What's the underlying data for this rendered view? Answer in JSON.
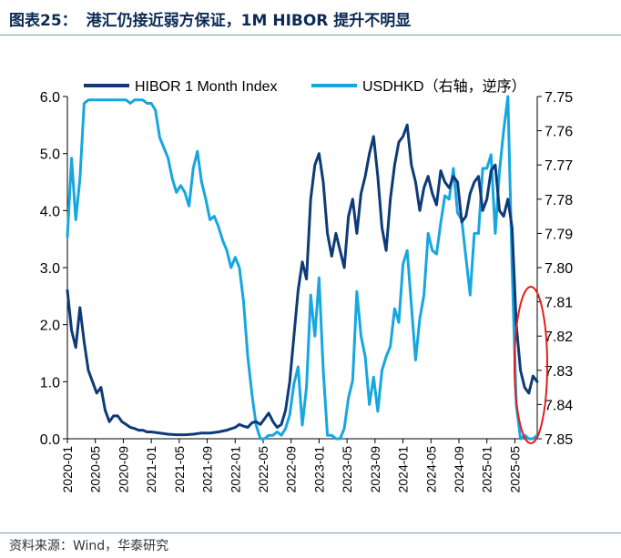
{
  "header": {
    "label": "图表25：",
    "title": "港汇仍接近弱方保证，1M HIBOR 提升不明显"
  },
  "footer": {
    "source": "资料来源：Wind，华泰研究"
  },
  "colors": {
    "hibor": "#0e3a78",
    "usdhkd": "#16a6e0",
    "axis": "#000000",
    "highlight": "#e0201b",
    "rule": "#7f98b5"
  },
  "chart_data": {
    "type": "line",
    "title": "",
    "xlabel": "",
    "ylabel_left": "",
    "ylabel_right": "",
    "left_axis": {
      "ylim": [
        0.0,
        6.0
      ],
      "ticks": [
        "0.0",
        "1.0",
        "2.0",
        "3.0",
        "4.0",
        "5.0",
        "6.0"
      ]
    },
    "right_axis": {
      "ylim": [
        7.75,
        7.85
      ],
      "inverted": true,
      "ticks": [
        "7.75",
        "7.76",
        "7.77",
        "7.78",
        "7.79",
        "7.80",
        "7.81",
        "7.82",
        "7.83",
        "7.84",
        "7.85"
      ]
    },
    "x_ticks": [
      "2020-01",
      "2020-05",
      "2020-09",
      "2021-01",
      "2021-05",
      "2021-09",
      "2022-01",
      "2022-05",
      "2022-09",
      "2023-01",
      "2023-05",
      "2023-09",
      "2024-01",
      "2024-05",
      "2024-09",
      "2025-01",
      "2025-05"
    ],
    "legend": [
      "HIBOR 1 Month Index",
      "USDHKD（右轴，逆序）"
    ],
    "legend_position": "top",
    "annotations": [
      "red ellipse highlighting 2025-05 onward"
    ],
    "series": [
      {
        "name": "HIBOR 1 Month Index",
        "axis": "left",
        "x": [
          2020.0,
          2020.05,
          2020.1,
          2020.15,
          2020.2,
          2020.25,
          2020.3,
          2020.35,
          2020.4,
          2020.45,
          2020.5,
          2020.55,
          2020.6,
          2020.65,
          2020.7,
          2020.75,
          2020.8,
          2020.85,
          2020.9,
          2020.95,
          2021.0,
          2021.1,
          2021.2,
          2021.3,
          2021.4,
          2021.5,
          2021.6,
          2021.7,
          2021.8,
          2021.9,
          2022.0,
          2022.05,
          2022.1,
          2022.15,
          2022.2,
          2022.25,
          2022.3,
          2022.35,
          2022.4,
          2022.45,
          2022.5,
          2022.55,
          2022.6,
          2022.65,
          2022.7,
          2022.75,
          2022.8,
          2022.85,
          2022.9,
          2022.95,
          2023.0,
          2023.05,
          2023.1,
          2023.15,
          2023.2,
          2023.25,
          2023.3,
          2023.35,
          2023.4,
          2023.45,
          2023.5,
          2023.55,
          2023.6,
          2023.65,
          2023.7,
          2023.75,
          2023.8,
          2023.85,
          2023.9,
          2023.95,
          2024.0,
          2024.05,
          2024.1,
          2024.15,
          2024.2,
          2024.25,
          2024.3,
          2024.35,
          2024.4,
          2024.45,
          2024.5,
          2024.55,
          2024.6,
          2024.65,
          2024.7,
          2024.75,
          2024.8,
          2024.85,
          2024.9,
          2024.95,
          2025.0,
          2025.05,
          2025.1,
          2025.15,
          2025.2,
          2025.25,
          2025.3,
          2025.35,
          2025.4,
          2025.45,
          2025.5,
          2025.55,
          2025.6
        ],
        "values": [
          2.6,
          1.9,
          1.6,
          2.3,
          1.7,
          1.2,
          1.0,
          0.8,
          0.9,
          0.5,
          0.3,
          0.4,
          0.4,
          0.3,
          0.25,
          0.2,
          0.18,
          0.15,
          0.15,
          0.12,
          0.12,
          0.1,
          0.08,
          0.07,
          0.07,
          0.08,
          0.1,
          0.1,
          0.12,
          0.15,
          0.2,
          0.25,
          0.22,
          0.2,
          0.28,
          0.3,
          0.25,
          0.35,
          0.45,
          0.3,
          0.2,
          0.25,
          0.5,
          1.0,
          1.8,
          2.6,
          3.1,
          2.8,
          4.2,
          4.8,
          5.0,
          4.5,
          3.6,
          3.2,
          3.6,
          3.3,
          3.0,
          3.9,
          4.2,
          3.6,
          4.3,
          4.6,
          5.0,
          5.3,
          4.6,
          3.7,
          3.3,
          4.2,
          4.8,
          5.2,
          5.3,
          5.5,
          4.8,
          4.5,
          4.0,
          4.4,
          4.6,
          4.3,
          4.1,
          4.7,
          4.5,
          4.4,
          4.6,
          4.5,
          3.8,
          3.9,
          4.3,
          4.5,
          4.6,
          4.0,
          4.2,
          4.7,
          4.8,
          4.0,
          3.9,
          4.2,
          3.7,
          2.0,
          1.2,
          0.9,
          0.8,
          1.1,
          1.0
        ]
      },
      {
        "name": "USDHKD（右轴，逆序）",
        "axis": "right",
        "x": [
          2020.0,
          2020.05,
          2020.1,
          2020.15,
          2020.2,
          2020.25,
          2020.3,
          2020.35,
          2020.4,
          2020.45,
          2020.5,
          2020.55,
          2020.6,
          2020.65,
          2020.7,
          2020.75,
          2020.8,
          2020.85,
          2020.9,
          2020.95,
          2021.0,
          2021.05,
          2021.1,
          2021.15,
          2021.2,
          2021.25,
          2021.3,
          2021.35,
          2021.4,
          2021.45,
          2021.5,
          2021.55,
          2021.6,
          2021.65,
          2021.7,
          2021.75,
          2021.8,
          2021.85,
          2021.9,
          2021.95,
          2022.0,
          2022.05,
          2022.1,
          2022.15,
          2022.2,
          2022.25,
          2022.3,
          2022.35,
          2022.4,
          2022.45,
          2022.5,
          2022.55,
          2022.6,
          2022.65,
          2022.7,
          2022.75,
          2022.8,
          2022.85,
          2022.9,
          2022.95,
          2023.0,
          2023.05,
          2023.1,
          2023.15,
          2023.2,
          2023.25,
          2023.3,
          2023.35,
          2023.4,
          2023.45,
          2023.5,
          2023.55,
          2023.6,
          2023.65,
          2023.7,
          2023.75,
          2023.8,
          2023.85,
          2023.9,
          2023.95,
          2024.0,
          2024.05,
          2024.1,
          2024.15,
          2024.2,
          2024.25,
          2024.3,
          2024.35,
          2024.4,
          2024.45,
          2024.5,
          2024.55,
          2024.6,
          2024.65,
          2024.7,
          2024.75,
          2024.8,
          2024.85,
          2024.9,
          2024.95,
          2025.0,
          2025.05,
          2025.1,
          2025.15,
          2025.2,
          2025.25,
          2025.3,
          2025.35,
          2025.4,
          2025.45,
          2025.5,
          2025.55,
          2025.6
        ],
        "values": [
          7.791,
          7.768,
          7.786,
          7.774,
          7.752,
          7.751,
          7.751,
          7.751,
          7.751,
          7.751,
          7.751,
          7.751,
          7.751,
          7.751,
          7.751,
          7.752,
          7.751,
          7.751,
          7.751,
          7.752,
          7.752,
          7.754,
          7.762,
          7.765,
          7.768,
          7.774,
          7.778,
          7.776,
          7.778,
          7.782,
          7.771,
          7.766,
          7.775,
          7.78,
          7.786,
          7.785,
          7.788,
          7.792,
          7.795,
          7.8,
          7.797,
          7.8,
          7.81,
          7.826,
          7.837,
          7.846,
          7.85,
          7.85,
          7.849,
          7.849,
          7.848,
          7.849,
          7.847,
          7.843,
          7.834,
          7.829,
          7.846,
          7.835,
          7.808,
          7.82,
          7.803,
          7.83,
          7.849,
          7.849,
          7.85,
          7.85,
          7.847,
          7.838,
          7.833,
          7.807,
          7.82,
          7.826,
          7.84,
          7.832,
          7.842,
          7.83,
          7.826,
          7.823,
          7.812,
          7.816,
          7.799,
          7.795,
          7.811,
          7.827,
          7.815,
          7.808,
          7.79,
          7.795,
          7.796,
          7.787,
          7.779,
          7.78,
          7.771,
          7.784,
          7.786,
          7.797,
          7.808,
          7.79,
          7.79,
          7.771,
          7.771,
          7.767,
          7.79,
          7.772,
          7.76,
          7.75,
          7.8,
          7.84,
          7.85,
          7.849,
          7.85,
          7.85,
          7.849
        ]
      }
    ]
  }
}
